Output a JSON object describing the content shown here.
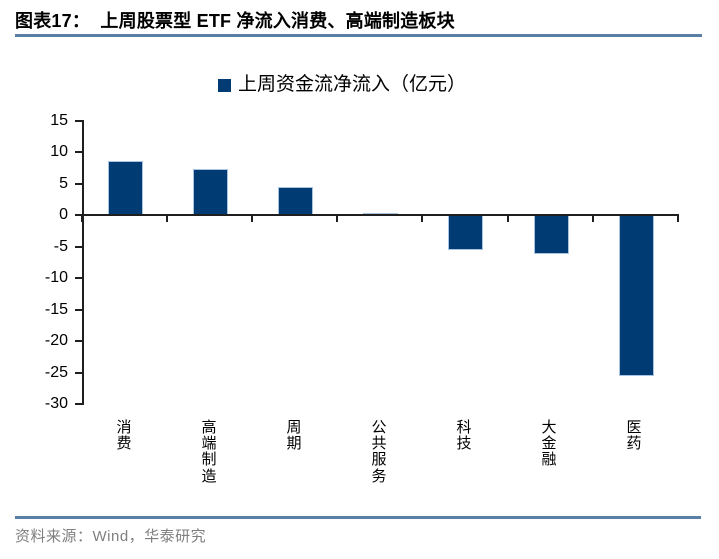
{
  "figure": {
    "title": "图表17：  上周股票型 ETF 净流入消费、高端制造板块",
    "source": "资料来源：Wind，华泰研究"
  },
  "legend": {
    "label": "上周资金流净流入（亿元）"
  },
  "colors": {
    "bar": "#003b73",
    "bar_border": "#a9c4e1",
    "rule": "#5b7ea6",
    "source_text": "#7f7f7f",
    "axis": "#1f1f1f"
  },
  "chart_data": {
    "type": "bar",
    "title": "上周股票型 ETF 净流入消费、高端制造板块",
    "series_name": "上周资金流净流入（亿元）",
    "unit": "亿元",
    "categories": [
      "消费",
      "高端制造",
      "周期",
      "公共服务",
      "科技",
      "大金融",
      "医药"
    ],
    "values": [
      8.6,
      7.3,
      4.5,
      0.3,
      -5.5,
      -6.2,
      -25.6
    ],
    "ylim": [
      -30,
      15
    ],
    "yticks": [
      15,
      10,
      5,
      0,
      -5,
      -10,
      -15,
      -20,
      -25,
      -30
    ],
    "grid": false,
    "legend_position": "top-center"
  }
}
